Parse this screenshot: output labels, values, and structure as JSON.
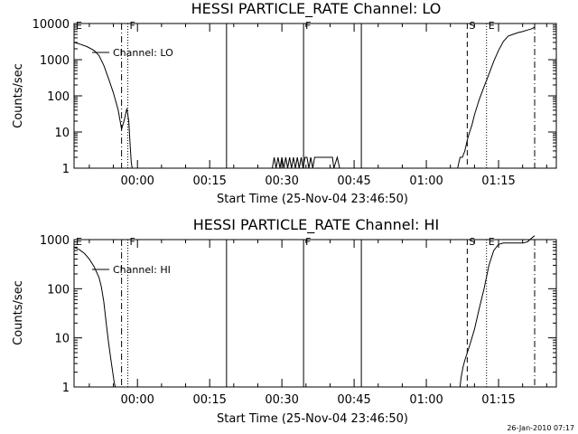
{
  "footer_timestamp": "26-Jan-2010 07:17",
  "chart_data": [
    {
      "type": "line",
      "title": "HESSI PARTICLE_RATE Channel: LO",
      "xlabel": "Start Time (25-Nov-04 23:46:50)",
      "ylabel": "Counts/sec",
      "yscale": "log",
      "ylim": [
        1,
        10000
      ],
      "yticks": [
        "1",
        "10",
        "100",
        "1000",
        "10000"
      ],
      "xlim": [
        -13.17,
        87.0
      ],
      "xtick_labels": [
        "00:00",
        "00:15",
        "00:30",
        "00:45",
        "01:00",
        "01:15"
      ],
      "xticks": [
        0,
        15,
        30,
        45,
        60,
        75
      ],
      "legend": "Channel: LO",
      "markers": [
        {
          "label": "E",
          "x": -13.17,
          "style": "dash-dot"
        },
        {
          "label": "F",
          "x": -2.0,
          "style": "dotted"
        },
        {
          "label": "F",
          "x": 34.5,
          "style": "solid"
        },
        {
          "label": "S",
          "x": 68.5,
          "style": "dashed"
        },
        {
          "label": "E",
          "x": 72.5,
          "style": "dotted"
        }
      ],
      "vlines": [
        {
          "x": -3.3,
          "style": "dash-dot"
        },
        {
          "x": 18.5,
          "style": "solid"
        },
        {
          "x": 46.5,
          "style": "solid"
        },
        {
          "x": 82.5,
          "style": "dash-dot"
        }
      ],
      "series": [
        {
          "segments": [
            {
              "x": [
                -13.17,
                -12,
                -10.5,
                -9,
                -8,
                -7,
                -6,
                -5,
                -4,
                -3.3,
                -2.8,
                -2.2,
                -1.8,
                -1.5,
                -1.3,
                -1.1
              ],
              "y": [
                3000,
                2700,
                2300,
                1800,
                1300,
                700,
                300,
                120,
                40,
                12,
                20,
                45,
                20,
                4,
                1.5,
                1
              ]
            },
            {
              "x": [
                28,
                28.4,
                28.8,
                29.2,
                29.6,
                30,
                30.4,
                30.8,
                31.2,
                31.6,
                32,
                32.4,
                32.8,
                33.2,
                33.6,
                34,
                34.4,
                34.8,
                35.2,
                35.6,
                36,
                36.4,
                36.8,
                37.2,
                40.5,
                40.8,
                41.5,
                42
              ],
              "y": [
                1,
                2,
                1,
                2,
                1,
                2,
                1,
                2,
                1,
                2,
                1,
                2,
                1,
                2,
                1,
                2,
                1,
                2,
                2,
                1,
                2,
                1,
                2,
                2,
                2,
                1,
                2,
                1
              ]
            },
            {
              "x": [
                66.5,
                67,
                67.5,
                68,
                68.5,
                69,
                69.5,
                70,
                71,
                72,
                73,
                74,
                75,
                76,
                77,
                78,
                79,
                80,
                81,
                82,
                82.5
              ],
              "y": [
                1,
                2,
                2,
                3,
                6,
                10,
                16,
                30,
                80,
                180,
                400,
                900,
                1800,
                3200,
                4500,
                5000,
                5600,
                6000,
                6600,
                7200,
                8000
              ]
            }
          ]
        }
      ]
    },
    {
      "type": "line",
      "title": "HESSI PARTICLE_RATE Channel: HI",
      "xlabel": "Start Time (25-Nov-04 23:46:50)",
      "ylabel": "Counts/sec",
      "yscale": "log",
      "ylim": [
        1,
        1000
      ],
      "yticks": [
        "1",
        "10",
        "100",
        "1000"
      ],
      "xlim": [
        -13.17,
        87.0
      ],
      "xtick_labels": [
        "00:00",
        "00:15",
        "00:30",
        "00:45",
        "01:00",
        "01:15"
      ],
      "xticks": [
        0,
        15,
        30,
        45,
        60,
        75
      ],
      "legend": "Channel: HI",
      "markers": [
        {
          "label": "E",
          "x": -13.17,
          "style": "dash-dot"
        },
        {
          "label": "F",
          "x": -2.0,
          "style": "dotted"
        },
        {
          "label": "F",
          "x": 34.5,
          "style": "solid"
        },
        {
          "label": "S",
          "x": 68.5,
          "style": "dashed"
        },
        {
          "label": "E",
          "x": 72.5,
          "style": "dotted"
        }
      ],
      "vlines": [
        {
          "x": -3.3,
          "style": "dash-dot"
        },
        {
          "x": 18.5,
          "style": "solid"
        },
        {
          "x": 46.5,
          "style": "solid"
        },
        {
          "x": 82.5,
          "style": "dash-dot"
        }
      ],
      "series": [
        {
          "segments": [
            {
              "x": [
                -13.17,
                -12,
                -11,
                -10,
                -9,
                -8,
                -7.5,
                -7,
                -6.5,
                -6,
                -5.5,
                -5,
                -4.8,
                -4.6
              ],
              "y": [
                700,
                620,
                520,
                400,
                280,
                170,
                110,
                55,
                20,
                8,
                3.5,
                1.6,
                1.2,
                1
              ]
            },
            {
              "x": [
                67,
                67.2,
                67.6,
                68,
                69,
                70,
                71,
                72,
                73,
                74,
                75,
                76,
                78,
                80,
                81,
                82,
                82.5
              ],
              "y": [
                1,
                1.5,
                2.5,
                3.5,
                7,
                15,
                40,
                100,
                300,
                600,
                800,
                850,
                850,
                850,
                900,
                1100,
                1200
              ]
            }
          ]
        }
      ]
    }
  ]
}
